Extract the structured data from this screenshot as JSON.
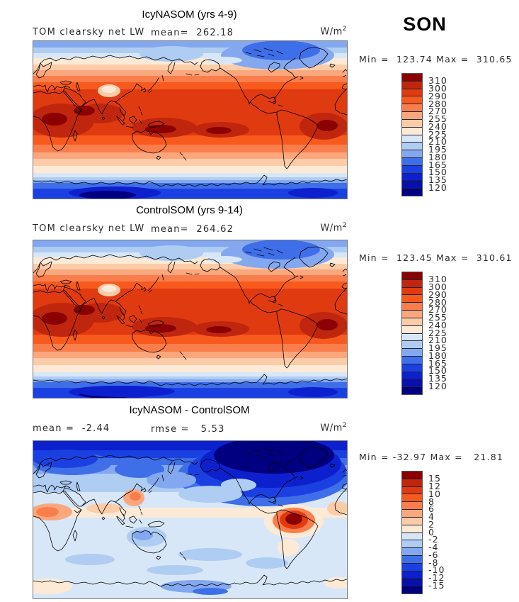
{
  "figure": {
    "season": "SON",
    "units_base": "W/m",
    "units_exp": "2"
  },
  "colorbar_colors": [
    "#8B0000",
    "#C0260E",
    "#E03A10",
    "#F85A1E",
    "#F97E4C",
    "#FBA77D",
    "#FCCBA8",
    "#FDEAD6",
    "#D8E7F8",
    "#AFCCF2",
    "#83A8EF",
    "#3E6FE9",
    "#1B40E2",
    "#0D20CE",
    "#0710AC",
    "#000080"
  ],
  "panels": [
    {
      "title": "IcyNASOM (yrs 4-9)",
      "subtitle_left": "TOM clearsky net LW",
      "subtitle_center": "mean=  262.18",
      "minmax_text": "Min =  123.74 Max =  310.65",
      "colorbar_labels": [
        "310",
        "300",
        "290",
        "280",
        "270",
        "255",
        "240",
        "225",
        "210",
        "195",
        "180",
        "165",
        "150",
        "135",
        "120"
      ]
    },
    {
      "title": "ControlSOM (yrs 9-14)",
      "subtitle_left": "TOM clearsky net LW",
      "subtitle_center": "mean=  264.62",
      "minmax_text": "Min =  123.45 Max =  310.61",
      "colorbar_labels": [
        "310",
        "300",
        "290",
        "280",
        "270",
        "255",
        "240",
        "225",
        "210",
        "195",
        "180",
        "165",
        "150",
        "135",
        "120"
      ]
    },
    {
      "title": "IcyNASOM - ControlSOM",
      "subtitle_left": "mean =  -2.44",
      "subtitle_center": "rmse =   5.53",
      "minmax_text": "Min = -32.97 Max =   21.81",
      "colorbar_labels": [
        "15",
        "12",
        "10",
        "8",
        "6",
        "4",
        "2",
        "0",
        "-2",
        "-4",
        "-6",
        "-8",
        "-10",
        "-12",
        "-15"
      ]
    }
  ],
  "chart_data": [
    {
      "type": "heatmap",
      "subtype": "filled-contour world map, cylindrical projection, 0-360E Pacific-centered, 90N-90S",
      "title": "IcyNASOM (yrs 4-9)",
      "variable": "TOM clearsky net LW",
      "season": "SON",
      "units": "W/m^2",
      "mean": 262.18,
      "min": 123.74,
      "max": 310.65,
      "contour_levels": [
        120,
        135,
        150,
        165,
        180,
        195,
        210,
        225,
        240,
        255,
        270,
        280,
        290,
        300,
        310
      ],
      "palette_low_to_high": [
        "#000080",
        "#0710AC",
        "#0D20CE",
        "#1B40E2",
        "#3E6FE9",
        "#83A8EF",
        "#AFCCF2",
        "#D8E7F8",
        "#FDEAD6",
        "#FCCBA8",
        "#FBA77D",
        "#F97E4C",
        "#F85A1E",
        "#E03A10",
        "#C0260E",
        "#8B0000"
      ],
      "pattern": "zonal: dark red maximum 300-310 across tropics, values decreasing poleward; blue 120-180 over Arctic and Antarctic",
      "legend_position": "right"
    },
    {
      "type": "heatmap",
      "subtype": "filled-contour world map, cylindrical projection, 0-360E Pacific-centered, 90N-90S",
      "title": "ControlSOM (yrs 9-14)",
      "variable": "TOM clearsky net LW",
      "season": "SON",
      "units": "W/m^2",
      "mean": 264.62,
      "min": 123.45,
      "max": 310.61,
      "contour_levels": [
        120,
        135,
        150,
        165,
        180,
        195,
        210,
        225,
        240,
        255,
        270,
        280,
        290,
        300,
        310
      ],
      "palette_low_to_high": [
        "#000080",
        "#0710AC",
        "#0D20CE",
        "#1B40E2",
        "#3E6FE9",
        "#83A8EF",
        "#AFCCF2",
        "#D8E7F8",
        "#FDEAD6",
        "#FCCBA8",
        "#FBA77D",
        "#F97E4C",
        "#F85A1E",
        "#E03A10",
        "#C0260E",
        "#8B0000"
      ],
      "pattern": "nearly identical zonal structure to IcyNASOM panel",
      "legend_position": "right"
    },
    {
      "type": "heatmap",
      "subtype": "filled-contour difference map",
      "title": "IcyNASOM - ControlSOM",
      "season": "SON",
      "units": "W/m^2",
      "mean": -2.44,
      "rmse": 5.53,
      "min": -32.97,
      "max": 21.81,
      "contour_levels": [
        -15,
        -12,
        -10,
        -8,
        -6,
        -4,
        -2,
        0,
        2,
        4,
        6,
        8,
        10,
        12,
        15
      ],
      "palette_low_to_high": [
        "#000080",
        "#0710AC",
        "#0D20CE",
        "#1B40E2",
        "#3E6FE9",
        "#83A8EF",
        "#AFCCF2",
        "#D8E7F8",
        "#FDEAD6",
        "#FCCBA8",
        "#FBA77D",
        "#F97E4C",
        "#F85A1E",
        "#E03A10",
        "#C0260E",
        "#8B0000"
      ],
      "pattern": "weak negative (pale blue) over most of globe; strong negative below -15 over Arctic/Canada; positive red maximum over Amazon; scattered positive over Africa and India",
      "legend_position": "right"
    }
  ]
}
